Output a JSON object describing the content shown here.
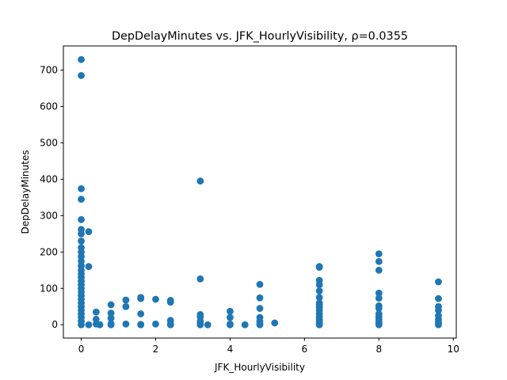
{
  "chart_data": {
    "type": "scatter",
    "title": "DepDelayMinutes vs. JFK_HourlyVisibility, ρ=0.0355",
    "xlabel": "JFK_HourlyVisibility",
    "ylabel": "DepDelayMinutes",
    "xlim": [
      -0.48,
      10.08
    ],
    "ylim": [
      -36.5,
      766.5
    ],
    "xticks": [
      0,
      2,
      4,
      6,
      8,
      10
    ],
    "yticks": [
      0,
      100,
      200,
      300,
      400,
      500,
      600,
      700
    ],
    "grid": false,
    "marker_color": "#1f77b4",
    "series": [
      {
        "points": [
          [
            0,
            729
          ],
          [
            0,
            685
          ],
          [
            0,
            374
          ],
          [
            0,
            345
          ],
          [
            0,
            289
          ],
          [
            0,
            262
          ],
          [
            0,
            250
          ],
          [
            0,
            230
          ],
          [
            0,
            212
          ],
          [
            0,
            200
          ],
          [
            0,
            188
          ],
          [
            0,
            175
          ],
          [
            0,
            162
          ],
          [
            0,
            150
          ],
          [
            0,
            140
          ],
          [
            0,
            130
          ],
          [
            0,
            120
          ],
          [
            0,
            110
          ],
          [
            0,
            100
          ],
          [
            0,
            90
          ],
          [
            0,
            80
          ],
          [
            0,
            70
          ],
          [
            0,
            60
          ],
          [
            0,
            50
          ],
          [
            0,
            40
          ],
          [
            0,
            30
          ],
          [
            0,
            20
          ],
          [
            0,
            10
          ],
          [
            0,
            0
          ],
          [
            0.2,
            256
          ],
          [
            0.2,
            160
          ],
          [
            0.2,
            0
          ],
          [
            0.4,
            35
          ],
          [
            0.4,
            15
          ],
          [
            0.4,
            2
          ],
          [
            0.5,
            0
          ],
          [
            0.8,
            55
          ],
          [
            0.8,
            32
          ],
          [
            0.8,
            18
          ],
          [
            0.8,
            3
          ],
          [
            0.8,
            0
          ],
          [
            1.2,
            68
          ],
          [
            1.2,
            50
          ],
          [
            1.2,
            2
          ],
          [
            1.6,
            75
          ],
          [
            1.6,
            72
          ],
          [
            1.6,
            30
          ],
          [
            1.6,
            1
          ],
          [
            1.6,
            0
          ],
          [
            2.0,
            70
          ],
          [
            2.0,
            2
          ],
          [
            2.4,
            67
          ],
          [
            2.4,
            62
          ],
          [
            2.4,
            12
          ],
          [
            2.4,
            2
          ],
          [
            2.4,
            0
          ],
          [
            3.2,
            395
          ],
          [
            3.2,
            126
          ],
          [
            3.2,
            28
          ],
          [
            3.2,
            22
          ],
          [
            3.2,
            10
          ],
          [
            3.2,
            3
          ],
          [
            3.2,
            0
          ],
          [
            3.4,
            0
          ],
          [
            4.0,
            37
          ],
          [
            4.0,
            20
          ],
          [
            4.0,
            2
          ],
          [
            4.0,
            0
          ],
          [
            4.4,
            0
          ],
          [
            4.8,
            111
          ],
          [
            4.8,
            74
          ],
          [
            4.8,
            45
          ],
          [
            4.8,
            20
          ],
          [
            4.8,
            10
          ],
          [
            4.8,
            3
          ],
          [
            4.8,
            0
          ],
          [
            5.2,
            5
          ],
          [
            6.4,
            160
          ],
          [
            6.4,
            158
          ],
          [
            6.4,
            122
          ],
          [
            6.4,
            110
          ],
          [
            6.4,
            93
          ],
          [
            6.4,
            75
          ],
          [
            6.4,
            60
          ],
          [
            6.4,
            55
          ],
          [
            6.4,
            48
          ],
          [
            6.4,
            40
          ],
          [
            6.4,
            30
          ],
          [
            6.4,
            22
          ],
          [
            6.4,
            15
          ],
          [
            6.4,
            10
          ],
          [
            6.4,
            5
          ],
          [
            6.4,
            2
          ],
          [
            6.4,
            0
          ],
          [
            8.0,
            195
          ],
          [
            8.0,
            174
          ],
          [
            8.0,
            150
          ],
          [
            8.0,
            87
          ],
          [
            8.0,
            73
          ],
          [
            8.0,
            52
          ],
          [
            8.0,
            45
          ],
          [
            8.0,
            30
          ],
          [
            8.0,
            22
          ],
          [
            8.0,
            15
          ],
          [
            8.0,
            8
          ],
          [
            8.0,
            3
          ],
          [
            8.0,
            0
          ],
          [
            9.6,
            118
          ],
          [
            9.6,
            72
          ],
          [
            9.6,
            50
          ],
          [
            9.6,
            40
          ],
          [
            9.6,
            25
          ],
          [
            9.6,
            15
          ],
          [
            9.6,
            8
          ],
          [
            9.6,
            3
          ],
          [
            9.6,
            0
          ]
        ]
      }
    ]
  }
}
